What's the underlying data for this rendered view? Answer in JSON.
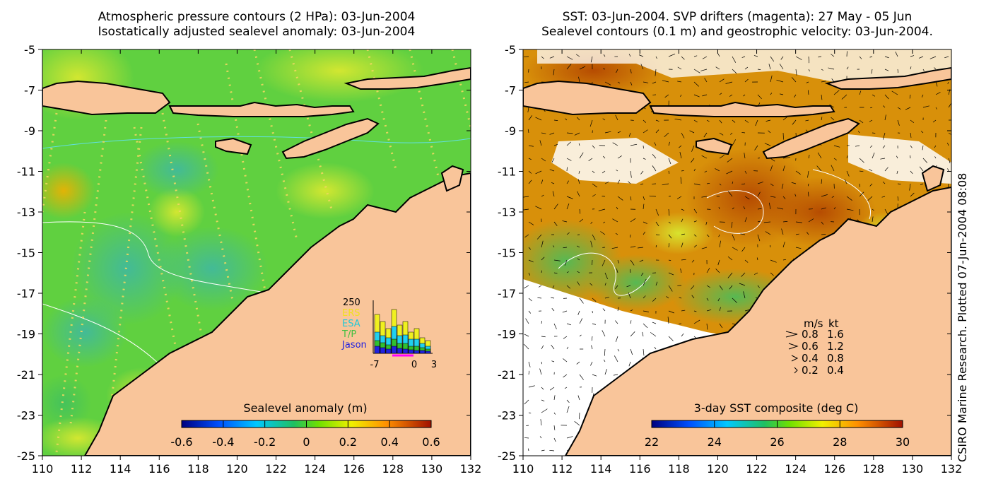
{
  "left_panel": {
    "title_line1": "Atmospheric pressure contours (2 HPa): 03-Jun-2004",
    "title_line2": "Isostatically adjusted sealevel anomaly: 03-Jun-2004",
    "colorbar_label": "Sealevel anomaly (m)",
    "colorbar_ticks": [
      "-0.6",
      "-0.4",
      "-0.2",
      "0",
      "0.2",
      "0.4",
      "0.6"
    ],
    "inset": {
      "ytick": "250",
      "legend": [
        "ERS",
        "ESA",
        "T/P",
        "Jason"
      ],
      "legend_colors": [
        "#f0e020",
        "#20c8d8",
        "#40c040",
        "#2020e0"
      ],
      "xticks": [
        "-7",
        "0",
        "3"
      ]
    }
  },
  "right_panel": {
    "title_line1": "SST: 03-Jun-2004. SVP drifters (magenta): 27 May - 05 Jun",
    "title_line2": "Sealevel contours (0.1 m) and geostrophic velocity: 03-Jun-2004.",
    "colorbar_label": "3-day SST composite (deg C)",
    "colorbar_ticks": [
      "22",
      "24",
      "26",
      "28",
      "30"
    ],
    "velocity_legend": {
      "header_ms": "m/s",
      "header_kt": "kt",
      "rows": [
        {
          "ms": "0.8",
          "kt": "1.6"
        },
        {
          "ms": "0.6",
          "kt": "1.2"
        },
        {
          "ms": "0.4",
          "kt": "0.8"
        },
        {
          "ms": "0.2",
          "kt": "0.4"
        }
      ]
    }
  },
  "credit": "CSIRO Marine Research. Plotted 07-Jun-2004 08:08",
  "chart_data": [
    {
      "type": "heatmap",
      "title": "Atmospheric pressure contours (2 HPa): 03-Jun-2004 / Isostatically adjusted sealevel anomaly: 03-Jun-2004",
      "xlim": [
        110,
        132
      ],
      "ylim": [
        -25,
        -5
      ],
      "xticks": [
        110,
        112,
        114,
        116,
        118,
        120,
        122,
        124,
        126,
        128,
        130,
        132
      ],
      "yticks": [
        -5,
        -7,
        -9,
        -11,
        -13,
        -15,
        -17,
        -19,
        -21,
        -23,
        -25
      ],
      "colorbar": {
        "label": "Sealevel anomaly (m)",
        "range": [
          -0.6,
          0.6
        ]
      }
    },
    {
      "type": "heatmap",
      "title": "SST: 03-Jun-2004. SVP drifters (magenta): 27 May - 05 Jun / Sealevel contours (0.1 m) and geostrophic velocity: 03-Jun-2004.",
      "xlim": [
        110,
        132
      ],
      "ylim": [
        -25,
        -5
      ],
      "xticks": [
        110,
        112,
        114,
        116,
        118,
        120,
        122,
        124,
        126,
        128,
        130,
        132
      ],
      "yticks": [
        -5,
        -7,
        -9,
        -11,
        -13,
        -15,
        -17,
        -19,
        -21,
        -23,
        -25
      ],
      "colorbar": {
        "label": "3-day SST composite (deg C)",
        "range": [
          22,
          30
        ]
      }
    }
  ],
  "colors": {
    "land": "#f9c59a",
    "ocean_left": "#60d040",
    "ocean_right": "#e08a20",
    "coast": "#000000"
  }
}
